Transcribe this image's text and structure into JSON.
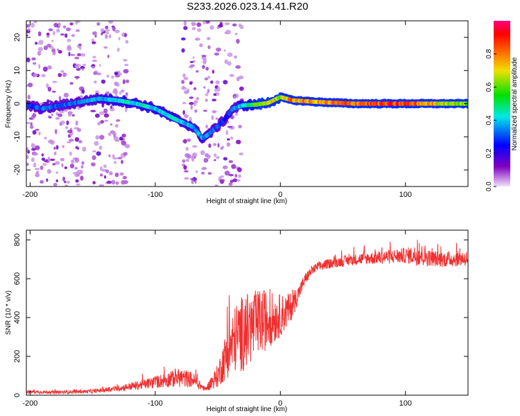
{
  "title": "S233.2026.023.14.41.R20",
  "chart_data": [
    {
      "type": "heatmap",
      "name": "spectrogram",
      "xlabel": "Height of straight line (km)",
      "ylabel": "Frequency (Hz)",
      "xlim": [
        -203,
        150
      ],
      "ylim": [
        -25,
        25
      ],
      "xticks": [
        -200,
        -100,
        0,
        100
      ],
      "xtick_labels": [
        "-200",
        "-100",
        "0",
        "100"
      ],
      "yticks": [
        -20,
        -10,
        0,
        10,
        20
      ],
      "ytick_labels": [
        "-20",
        "-10",
        "0",
        "10",
        "20"
      ],
      "colorbar": {
        "label": "Normalized spectral amplitude",
        "ticks": [
          0.0,
          0.2,
          0.4,
          0.6,
          0.8
        ],
        "tick_labels": [
          "0.0",
          "0.2",
          "0.4",
          "0.6",
          "0.8"
        ],
        "range": [
          0.0,
          1.0
        ],
        "colors": [
          "#e8d8f4",
          "#8000c0",
          "#0000ff",
          "#00e8e8",
          "#00e000",
          "#f0e000",
          "#ff6000",
          "#ff0000",
          "#ff0080"
        ]
      },
      "ridge": {
        "x": [
          -203,
          -190,
          -160,
          -145,
          -130,
          -115,
          -100,
          -85,
          -70,
          -62,
          -55,
          -45,
          -38,
          -30,
          -20,
          -10,
          0,
          10,
          30,
          60,
          100,
          120,
          150
        ],
        "y": [
          -0.5,
          -1.5,
          0.5,
          1.5,
          1.0,
          0.0,
          -1.5,
          -4.5,
          -7.0,
          -10.5,
          -8.5,
          -5.0,
          -1.5,
          -0.5,
          -0.3,
          0.2,
          2.0,
          1.0,
          0.5,
          0.0,
          0.0,
          0.0,
          0.0
        ],
        "amplitude": [
          0.3,
          0.35,
          0.35,
          0.4,
          0.45,
          0.45,
          0.45,
          0.45,
          0.4,
          0.4,
          0.35,
          0.3,
          0.35,
          0.45,
          0.6,
          0.75,
          0.7,
          0.85,
          0.8,
          0.9,
          0.92,
          0.8,
          0.65
        ]
      }
    },
    {
      "type": "line",
      "name": "snr",
      "xlabel": "Height of straight line (km)",
      "ylabel": "SNR (10 * v/v)",
      "xlim": [
        -203,
        150
      ],
      "ylim": [
        0,
        850
      ],
      "xticks": [
        -200,
        -100,
        0,
        100
      ],
      "xtick_labels": [
        "-200",
        "-100",
        "0",
        "100"
      ],
      "yticks": [
        0,
        200,
        400,
        600,
        800
      ],
      "ytick_labels": [
        "0",
        "200",
        "400",
        "600",
        "800"
      ],
      "color": "#f03030",
      "x": [
        -203,
        -180,
        -150,
        -130,
        -110,
        -90,
        -80,
        -70,
        -60,
        -50,
        -45,
        -40,
        -35,
        -30,
        -25,
        -20,
        -15,
        -10,
        -5,
        0,
        5,
        10,
        15,
        20,
        25,
        30,
        40,
        60,
        80,
        100,
        115,
        120,
        130,
        150
      ],
      "y": [
        18,
        15,
        20,
        35,
        55,
        80,
        90,
        80,
        30,
        100,
        180,
        250,
        300,
        320,
        340,
        360,
        380,
        390,
        395,
        410,
        430,
        470,
        530,
        600,
        640,
        660,
        680,
        700,
        710,
        720,
        720,
        705,
        700,
        705
      ],
      "noise": [
        8,
        8,
        10,
        15,
        25,
        40,
        50,
        40,
        10,
        60,
        110,
        150,
        180,
        200,
        190,
        180,
        170,
        150,
        130,
        110,
        90,
        70,
        40,
        30,
        25,
        25,
        25,
        30,
        35,
        40,
        60,
        40,
        40,
        40
      ]
    }
  ]
}
